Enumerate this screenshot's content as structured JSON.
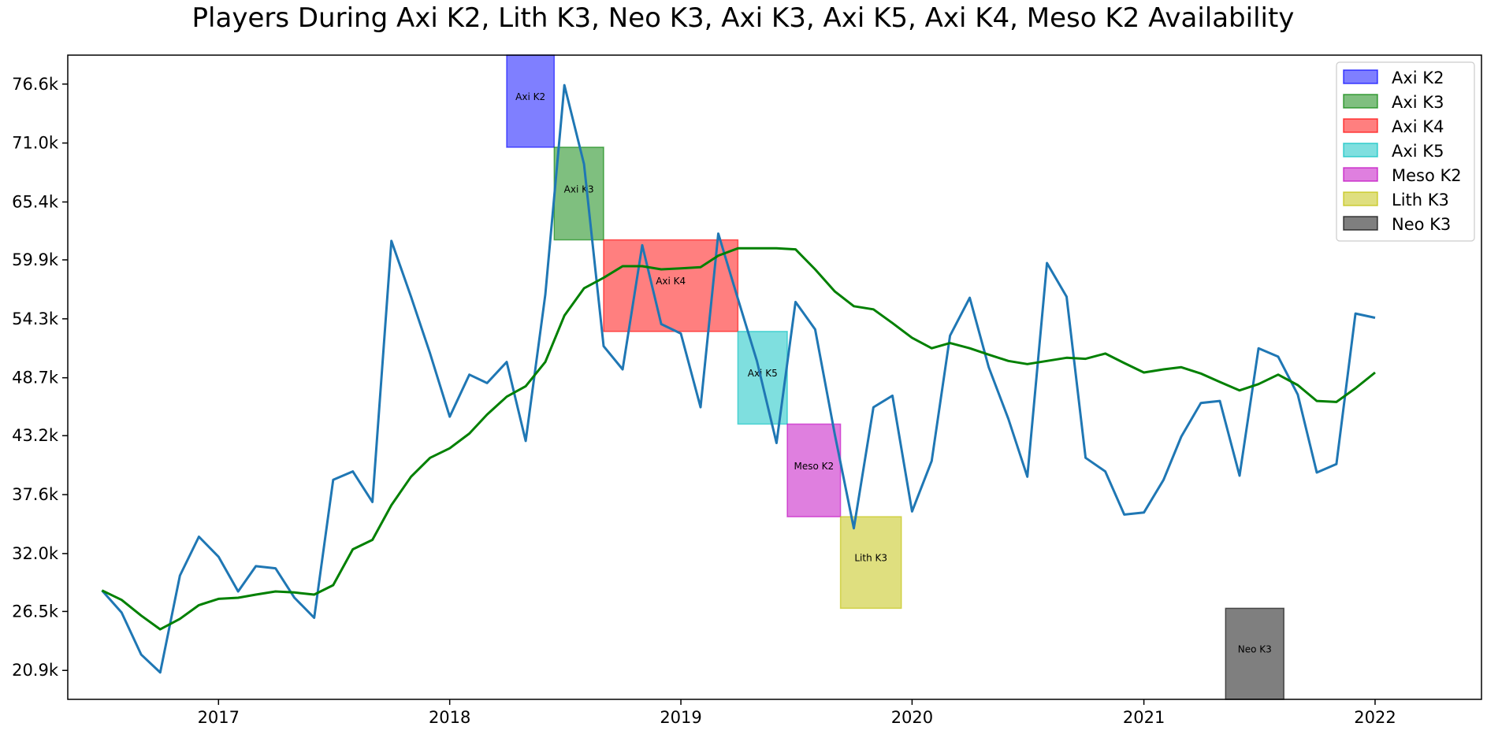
{
  "chart_data": {
    "type": "line",
    "title": "Players During Axi K2, Lith K3, Neo K3, Axi K3, Axi K5, Axi K4, Meso K2 Availability",
    "xlabel": "",
    "ylabel": "",
    "x_ticks": [
      {
        "label": "2017",
        "date": "2017-01-01"
      },
      {
        "label": "2018",
        "date": "2018-01-01"
      },
      {
        "label": "2019",
        "date": "2019-01-01"
      },
      {
        "label": "2020",
        "date": "2020-01-01"
      },
      {
        "label": "2021",
        "date": "2021-01-01"
      },
      {
        "label": "2022",
        "date": "2022-01-01"
      }
    ],
    "y_ticks": [
      {
        "label": "20.9k",
        "value": 20900
      },
      {
        "label": "26.5k",
        "value": 26500
      },
      {
        "label": "32.0k",
        "value": 32000
      },
      {
        "label": "37.6k",
        "value": 37600
      },
      {
        "label": "43.2k",
        "value": 43200
      },
      {
        "label": "48.7k",
        "value": 48700
      },
      {
        "label": "54.3k",
        "value": 54300
      },
      {
        "label": "59.9k",
        "value": 59900
      },
      {
        "label": "65.4k",
        "value": 65400
      },
      {
        "label": "71.0k",
        "value": 71000
      },
      {
        "label": "76.6k",
        "value": 76600
      }
    ],
    "xlim": [
      "2016-05-08",
      "2022-06-18"
    ],
    "ylim": [
      18150,
      79350
    ],
    "grid": false,
    "legend_position": "top-right",
    "series": [
      {
        "color": "#1f77b4",
        "points": [
          [
            "2016-07-01",
            28500
          ],
          [
            "2016-08-01",
            26400
          ],
          [
            "2016-09-01",
            22400
          ],
          [
            "2016-10-01",
            20700
          ],
          [
            "2016-11-01",
            29900
          ],
          [
            "2016-12-01",
            33600
          ],
          [
            "2017-01-01",
            31700
          ],
          [
            "2017-02-01",
            28400
          ],
          [
            "2017-03-01",
            30800
          ],
          [
            "2017-04-01",
            30600
          ],
          [
            "2017-05-01",
            27800
          ],
          [
            "2017-06-01",
            25900
          ],
          [
            "2017-07-01",
            39000
          ],
          [
            "2017-08-01",
            39800
          ],
          [
            "2017-09-01",
            36900
          ],
          [
            "2017-10-01",
            61700
          ],
          [
            "2017-11-01",
            56400
          ],
          [
            "2017-12-01",
            51000
          ],
          [
            "2018-01-01",
            45000
          ],
          [
            "2018-02-01",
            49000
          ],
          [
            "2018-03-01",
            48200
          ],
          [
            "2018-04-01",
            50200
          ],
          [
            "2018-05-01",
            42700
          ],
          [
            "2018-06-01",
            56600
          ],
          [
            "2018-07-01",
            76500
          ],
          [
            "2018-08-01",
            69000
          ],
          [
            "2018-09-01",
            51700
          ],
          [
            "2018-10-01",
            49500
          ],
          [
            "2018-11-01",
            61300
          ],
          [
            "2018-12-01",
            53800
          ],
          [
            "2019-01-01",
            52900
          ],
          [
            "2019-02-01",
            45900
          ],
          [
            "2019-03-01",
            62400
          ],
          [
            "2019-04-01",
            56200
          ],
          [
            "2019-05-01",
            50300
          ],
          [
            "2019-06-01",
            42500
          ],
          [
            "2019-07-01",
            55900
          ],
          [
            "2019-08-01",
            53300
          ],
          [
            "2019-09-01",
            43300
          ],
          [
            "2019-10-01",
            34400
          ],
          [
            "2019-11-01",
            45900
          ],
          [
            "2019-12-01",
            47000
          ],
          [
            "2020-01-01",
            36000
          ],
          [
            "2020-02-01",
            40800
          ],
          [
            "2020-03-01",
            52700
          ],
          [
            "2020-04-01",
            56300
          ],
          [
            "2020-05-01",
            49700
          ],
          [
            "2020-06-01",
            44800
          ],
          [
            "2020-07-01",
            39300
          ],
          [
            "2020-08-01",
            59600
          ],
          [
            "2020-09-01",
            56400
          ],
          [
            "2020-10-01",
            41100
          ],
          [
            "2020-11-01",
            39800
          ],
          [
            "2020-12-01",
            35700
          ],
          [
            "2021-01-01",
            35900
          ],
          [
            "2021-02-01",
            39000
          ],
          [
            "2021-03-01",
            43100
          ],
          [
            "2021-04-01",
            46300
          ],
          [
            "2021-05-01",
            46500
          ],
          [
            "2021-06-01",
            39400
          ],
          [
            "2021-07-01",
            51500
          ],
          [
            "2021-08-01",
            50700
          ],
          [
            "2021-09-01",
            47100
          ],
          [
            "2021-10-01",
            39700
          ],
          [
            "2021-11-01",
            40500
          ],
          [
            "2021-12-01",
            54800
          ],
          [
            "2022-01-01",
            54400
          ]
        ]
      },
      {
        "color": "#008000",
        "points": [
          [
            "2016-07-01",
            28500
          ],
          [
            "2016-08-01",
            27600
          ],
          [
            "2016-09-01",
            26100
          ],
          [
            "2016-10-01",
            24800
          ],
          [
            "2016-11-01",
            25800
          ],
          [
            "2016-12-01",
            27100
          ],
          [
            "2017-01-01",
            27700
          ],
          [
            "2017-02-01",
            27800
          ],
          [
            "2017-03-01",
            28100
          ],
          [
            "2017-04-01",
            28400
          ],
          [
            "2017-05-01",
            28300
          ],
          [
            "2017-06-01",
            28100
          ],
          [
            "2017-07-01",
            29000
          ],
          [
            "2017-08-01",
            32400
          ],
          [
            "2017-09-01",
            33300
          ],
          [
            "2017-10-01",
            36600
          ],
          [
            "2017-11-01",
            39300
          ],
          [
            "2017-12-01",
            41100
          ],
          [
            "2018-01-01",
            42000
          ],
          [
            "2018-02-01",
            43400
          ],
          [
            "2018-03-01",
            45200
          ],
          [
            "2018-04-01",
            46900
          ],
          [
            "2018-05-01",
            47900
          ],
          [
            "2018-06-01",
            50200
          ],
          [
            "2018-07-01",
            54600
          ],
          [
            "2018-08-01",
            57200
          ],
          [
            "2018-09-01",
            58200
          ],
          [
            "2018-10-01",
            59300
          ],
          [
            "2018-11-01",
            59300
          ],
          [
            "2018-12-01",
            59000
          ],
          [
            "2019-01-01",
            59100
          ],
          [
            "2019-02-01",
            59200
          ],
          [
            "2019-03-01",
            60300
          ],
          [
            "2019-04-01",
            61000
          ],
          [
            "2019-05-01",
            61000
          ],
          [
            "2019-06-01",
            61000
          ],
          [
            "2019-07-01",
            60900
          ],
          [
            "2019-08-01",
            59000
          ],
          [
            "2019-09-01",
            56900
          ],
          [
            "2019-10-01",
            55500
          ],
          [
            "2019-11-01",
            55200
          ],
          [
            "2019-12-01",
            53900
          ],
          [
            "2020-01-01",
            52500
          ],
          [
            "2020-02-01",
            51500
          ],
          [
            "2020-03-01",
            52000
          ],
          [
            "2020-04-01",
            51500
          ],
          [
            "2020-05-01",
            50900
          ],
          [
            "2020-06-01",
            50300
          ],
          [
            "2020-07-01",
            50000
          ],
          [
            "2020-08-01",
            50300
          ],
          [
            "2020-09-01",
            50600
          ],
          [
            "2020-10-01",
            50500
          ],
          [
            "2020-11-01",
            51000
          ],
          [
            "2020-12-01",
            50100
          ],
          [
            "2021-01-01",
            49200
          ],
          [
            "2021-02-01",
            49500
          ],
          [
            "2021-03-01",
            49700
          ],
          [
            "2021-04-01",
            49100
          ],
          [
            "2021-05-01",
            48300
          ],
          [
            "2021-06-01",
            47500
          ],
          [
            "2021-07-01",
            48100
          ],
          [
            "2021-08-01",
            49000
          ],
          [
            "2021-09-01",
            48000
          ],
          [
            "2021-10-01",
            46500
          ],
          [
            "2021-11-01",
            46400
          ],
          [
            "2021-12-01",
            47700
          ],
          [
            "2022-01-01",
            49200
          ]
        ]
      }
    ],
    "bands": [
      {
        "name": "Axi K2",
        "label": "Axi K2",
        "x_start": "2018-04-01",
        "x_end": "2018-06-15",
        "y_low": 70600,
        "y_high": 79350,
        "color": "#0000ff"
      },
      {
        "name": "Axi K3",
        "label": "Axi K3",
        "x_start": "2018-06-15",
        "x_end": "2018-09-01",
        "y_low": 61800,
        "y_high": 70600,
        "color": "#008000"
      },
      {
        "name": "Axi K4",
        "label": "Axi K4",
        "x_start": "2018-09-01",
        "x_end": "2019-04-01",
        "y_low": 53100,
        "y_high": 61800,
        "color": "#ff0000"
      },
      {
        "name": "Axi K5",
        "label": "Axi K5",
        "x_start": "2019-04-01",
        "x_end": "2019-06-18",
        "y_low": 44300,
        "y_high": 53100,
        "color": "#00bfbf"
      },
      {
        "name": "Meso K2",
        "label": "Meso K2",
        "x_start": "2019-06-18",
        "x_end": "2019-09-10",
        "y_low": 35500,
        "y_high": 44300,
        "color": "#bf00bf"
      },
      {
        "name": "Lith K3",
        "label": "Lith K3",
        "x_start": "2019-09-10",
        "x_end": "2019-12-15",
        "y_low": 26800,
        "y_high": 35500,
        "color": "#bfbf00"
      },
      {
        "name": "Neo K3",
        "label": "Neo K3",
        "x_start": "2021-05-10",
        "x_end": "2021-08-10",
        "y_low": 18150,
        "y_high": 26800,
        "color": "#000000"
      }
    ],
    "legend": [
      {
        "label": "Axi K2",
        "color": "#0000ff"
      },
      {
        "label": "Axi K3",
        "color": "#008000"
      },
      {
        "label": "Axi K4",
        "color": "#ff0000"
      },
      {
        "label": "Axi K5",
        "color": "#00bfbf"
      },
      {
        "label": "Meso K2",
        "color": "#bf00bf"
      },
      {
        "label": "Lith K3",
        "color": "#bfbf00"
      },
      {
        "label": "Neo K3",
        "color": "#000000"
      }
    ]
  }
}
